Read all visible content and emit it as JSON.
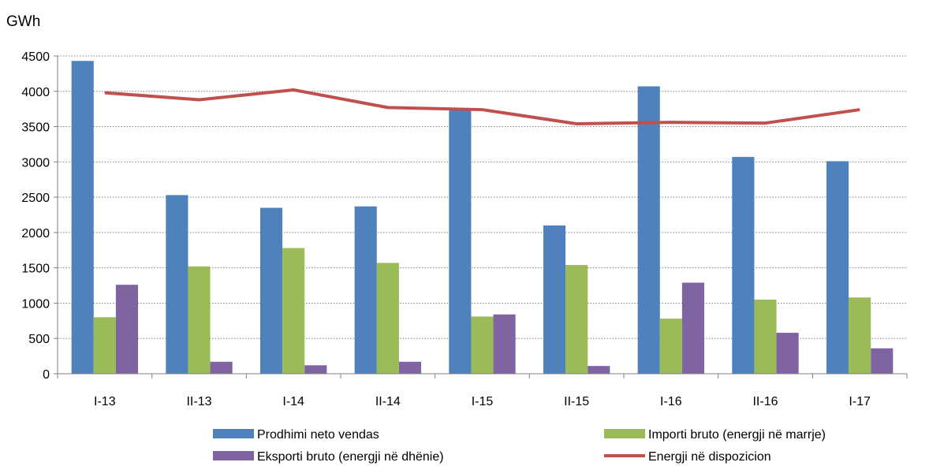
{
  "chart_data": {
    "type": "bar",
    "unit_label": "GWh",
    "categories": [
      "I-13",
      "II-13",
      "I-14",
      "II-14",
      "I-15",
      "II-15",
      "I-16",
      "II-16",
      "I-17"
    ],
    "ylim": [
      0,
      4500
    ],
    "yticks": [
      0,
      500,
      1000,
      1500,
      2000,
      2500,
      3000,
      3500,
      4000,
      4500
    ],
    "grid": "horizontal dotted",
    "legend_position": "bottom",
    "series": [
      {
        "name": "Prodhimi neto vendas",
        "type": "bar",
        "color": "#4F81BD",
        "values": [
          4430,
          2530,
          2350,
          2370,
          3730,
          2100,
          4070,
          3070,
          3010
        ]
      },
      {
        "name": "Importi bruto (energji në marrje)",
        "type": "bar",
        "color": "#9BBB59",
        "values": [
          800,
          1520,
          1780,
          1570,
          810,
          1540,
          780,
          1050,
          1080
        ]
      },
      {
        "name": "Eksporti bruto (energji në dhënie)",
        "type": "bar",
        "color": "#8064A2",
        "values": [
          1260,
          170,
          120,
          170,
          840,
          110,
          1290,
          580,
          360
        ]
      },
      {
        "name": "Energji në dispozicion",
        "type": "line",
        "color": "#C0504D",
        "values": [
          3980,
          3880,
          4020,
          3770,
          3740,
          3540,
          3560,
          3550,
          3740
        ]
      }
    ]
  }
}
